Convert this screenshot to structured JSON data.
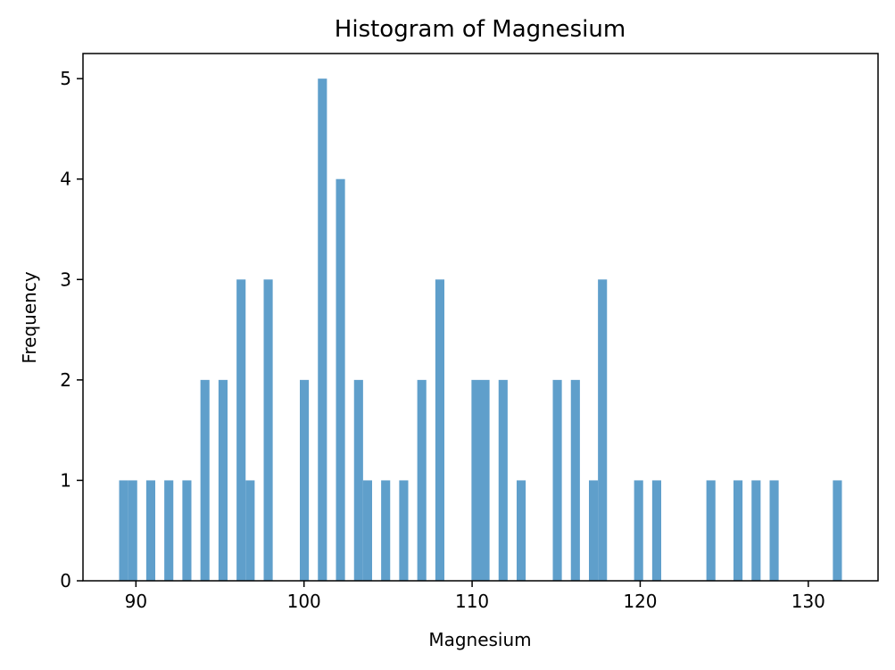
{
  "chart_data": {
    "type": "bar",
    "title": "Histogram of Magnesium",
    "xlabel": "Magnesium",
    "ylabel": "Frequency",
    "xlim": [
      86.85,
      134.15
    ],
    "ylim": [
      0,
      5.25
    ],
    "xticks": [
      90,
      100,
      110,
      120,
      130
    ],
    "yticks": [
      0,
      1,
      2,
      3,
      4,
      5
    ],
    "bin_width": 0.5375,
    "bar_color": "#5f9fcb",
    "grid": false,
    "bins": [
      {
        "x": 89.0,
        "count": 1
      },
      {
        "x": 89.5375,
        "count": 1
      },
      {
        "x": 90.6125,
        "count": 1
      },
      {
        "x": 91.6875,
        "count": 1
      },
      {
        "x": 92.7625,
        "count": 1
      },
      {
        "x": 93.8375,
        "count": 2
      },
      {
        "x": 94.9125,
        "count": 2
      },
      {
        "x": 95.9875,
        "count": 3
      },
      {
        "x": 96.525,
        "count": 1
      },
      {
        "x": 97.6,
        "count": 3
      },
      {
        "x": 99.75,
        "count": 2
      },
      {
        "x": 100.825,
        "count": 5
      },
      {
        "x": 101.9,
        "count": 4
      },
      {
        "x": 102.975,
        "count": 2
      },
      {
        "x": 103.5125,
        "count": 1
      },
      {
        "x": 104.5875,
        "count": 1
      },
      {
        "x": 105.6625,
        "count": 1
      },
      {
        "x": 106.7375,
        "count": 2
      },
      {
        "x": 107.8125,
        "count": 3
      },
      {
        "x": 109.9625,
        "count": 2
      },
      {
        "x": 110.5,
        "count": 2
      },
      {
        "x": 111.575,
        "count": 2
      },
      {
        "x": 112.65,
        "count": 1
      },
      {
        "x": 114.8,
        "count": 2
      },
      {
        "x": 115.875,
        "count": 2
      },
      {
        "x": 116.95,
        "count": 1
      },
      {
        "x": 117.4875,
        "count": 3
      },
      {
        "x": 119.6375,
        "count": 1
      },
      {
        "x": 120.7125,
        "count": 1
      },
      {
        "x": 123.9375,
        "count": 1
      },
      {
        "x": 125.55,
        "count": 1
      },
      {
        "x": 126.625,
        "count": 1
      },
      {
        "x": 127.7,
        "count": 1
      },
      {
        "x": 131.4625,
        "count": 1
      }
    ]
  }
}
